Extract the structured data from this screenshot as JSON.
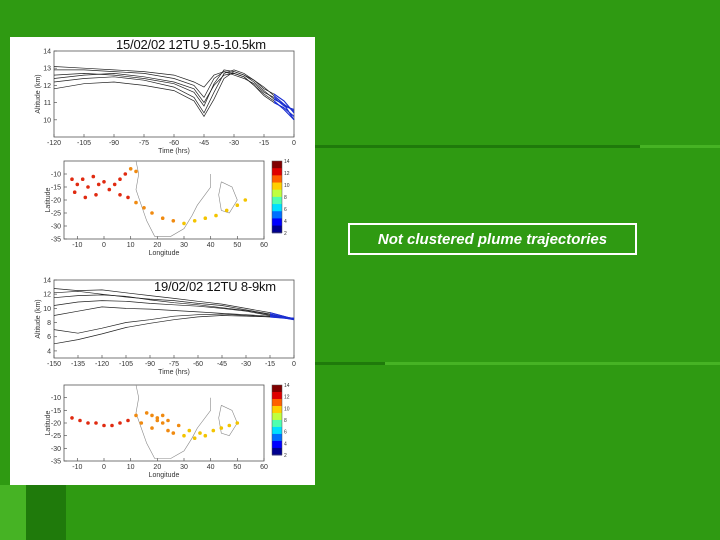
{
  "slide": {
    "colors": {
      "background": "#2f9a12",
      "band_dark": "#1f7a0b",
      "band_light": "#46b324"
    },
    "callout_text": "Not clustered plume trajectories"
  },
  "chart_data": [
    {
      "type": "line",
      "title": "15/02/02 12TU 9.5-10.5km",
      "xlabel": "Time (hrs)",
      "ylabel": "Altitude (km)",
      "xlim": [
        -120,
        0
      ],
      "ylim": [
        9,
        14
      ],
      "xticks": [
        -120,
        -105,
        -90,
        -75,
        -60,
        -45,
        -30,
        -15,
        0
      ],
      "yticks": [
        10,
        11,
        12,
        13,
        14
      ],
      "series": [
        {
          "x": [
            -120,
            -105,
            -90,
            -75,
            -60,
            -50,
            -45,
            -40,
            -35,
            -30,
            -25,
            -20,
            -15,
            -10,
            -5,
            0
          ],
          "values": [
            12.9,
            12.9,
            12.8,
            12.7,
            12.4,
            12.0,
            11.3,
            12.4,
            12.8,
            12.7,
            12.5,
            12.0,
            11.4,
            11.0,
            10.7,
            10.2
          ]
        },
        {
          "x": [
            -120,
            -105,
            -90,
            -75,
            -60,
            -50,
            -45,
            -40,
            -35,
            -30,
            -25,
            -20,
            -15,
            -10,
            -5,
            0
          ],
          "values": [
            12.6,
            12.7,
            12.6,
            12.4,
            12.1,
            11.6,
            10.8,
            12.1,
            12.9,
            12.8,
            12.6,
            12.2,
            11.7,
            11.2,
            10.9,
            10.0
          ]
        },
        {
          "x": [
            -120,
            -105,
            -90,
            -75,
            -60,
            -50,
            -45,
            -40,
            -35,
            -30,
            -25,
            -20,
            -15,
            -10,
            -5,
            0
          ],
          "values": [
            12.2,
            12.4,
            12.5,
            12.3,
            11.9,
            11.3,
            10.4,
            11.6,
            12.7,
            12.9,
            12.7,
            12.3,
            11.8,
            11.5,
            11.1,
            10.4
          ]
        },
        {
          "x": [
            -120,
            -105,
            -90,
            -75,
            -60,
            -50,
            -45,
            -40,
            -35,
            -30,
            -25,
            -20,
            -15,
            -10,
            -5,
            0
          ],
          "values": [
            13.1,
            13.0,
            12.9,
            12.8,
            12.6,
            12.2,
            11.9,
            12.6,
            12.8,
            12.6,
            12.4,
            12.1,
            11.6,
            11.3,
            10.8,
            10.6
          ]
        },
        {
          "x": [
            -120,
            -105,
            -90,
            -75,
            -60,
            -50,
            -45,
            -40,
            -35,
            -30,
            -25,
            -20,
            -15,
            -10,
            -5,
            0
          ],
          "values": [
            11.8,
            12.1,
            12.2,
            12.0,
            11.7,
            11.1,
            10.2,
            11.2,
            12.4,
            12.8,
            12.6,
            12.3,
            11.9,
            11.4,
            10.9,
            10.5
          ]
        },
        {
          "x": [
            -120,
            -105,
            -90,
            -75,
            -60,
            -50,
            -45,
            -40,
            -35,
            -30,
            -25,
            -20,
            -15,
            -10,
            -5,
            0
          ],
          "values": [
            12.4,
            12.6,
            12.7,
            12.5,
            12.2,
            11.8,
            11.0,
            12.0,
            12.6,
            12.7,
            12.5,
            12.0,
            11.5,
            11.1,
            10.6,
            10.0
          ]
        }
      ]
    },
    {
      "type": "scatter",
      "xlabel": "Longitude",
      "ylabel": "Latitude",
      "xlim": [
        -15,
        60
      ],
      "ylim": [
        -35,
        -5
      ],
      "xticks": [
        -10,
        0,
        10,
        20,
        30,
        40,
        50,
        60
      ],
      "yticks": [
        -10,
        -15,
        -20,
        -25,
        -30,
        -35
      ],
      "colorbar": {
        "ticks": [
          14,
          12,
          10,
          8,
          6,
          4,
          2
        ]
      },
      "points": [
        {
          "x": -12,
          "y": -12
        },
        {
          "x": -10,
          "y": -14
        },
        {
          "x": -8,
          "y": -12
        },
        {
          "x": -6,
          "y": -15
        },
        {
          "x": -4,
          "y": -11
        },
        {
          "x": -2,
          "y": -14
        },
        {
          "x": 0,
          "y": -13
        },
        {
          "x": 2,
          "y": -16
        },
        {
          "x": 4,
          "y": -14
        },
        {
          "x": 6,
          "y": -12
        },
        {
          "x": 8,
          "y": -10
        },
        {
          "x": 10,
          "y": -8
        },
        {
          "x": 12,
          "y": -9
        },
        {
          "x": 6,
          "y": -18
        },
        {
          "x": 9,
          "y": -19
        },
        {
          "x": 12,
          "y": -21
        },
        {
          "x": 15,
          "y": -23
        },
        {
          "x": 18,
          "y": -25
        },
        {
          "x": 22,
          "y": -27
        },
        {
          "x": 26,
          "y": -28
        },
        {
          "x": 30,
          "y": -29
        },
        {
          "x": 34,
          "y": -28
        },
        {
          "x": 38,
          "y": -27
        },
        {
          "x": 42,
          "y": -26
        },
        {
          "x": 46,
          "y": -24
        },
        {
          "x": 50,
          "y": -22
        },
        {
          "x": 53,
          "y": -20
        },
        {
          "x": -11,
          "y": -17
        },
        {
          "x": -7,
          "y": -19
        },
        {
          "x": -3,
          "y": -18
        }
      ]
    },
    {
      "type": "line",
      "title": "19/02/02 12TU 8-9km",
      "xlabel": "Time (hrs)",
      "ylabel": "Altitude (km)",
      "xlim": [
        -150,
        0
      ],
      "ylim": [
        3,
        14
      ],
      "xticks": [
        -150,
        -135,
        -120,
        -105,
        -90,
        -75,
        -60,
        -45,
        -30,
        -15,
        0
      ],
      "yticks": [
        4,
        6,
        8,
        10,
        12,
        14
      ],
      "series": [
        {
          "x": [
            -150,
            -135,
            -120,
            -105,
            -90,
            -75,
            -60,
            -45,
            -30,
            -15,
            -5,
            0
          ],
          "values": [
            12.8,
            12.5,
            12.6,
            12.2,
            11.8,
            11.4,
            11.0,
            10.6,
            10.0,
            9.4,
            8.8,
            8.5
          ]
        },
        {
          "x": [
            -150,
            -135,
            -120,
            -105,
            -90,
            -75,
            -60,
            -45,
            -30,
            -15,
            -5,
            0
          ],
          "values": [
            12.2,
            12.4,
            12.0,
            11.6,
            11.3,
            11.1,
            10.7,
            10.4,
            9.8,
            9.2,
            8.7,
            8.6
          ]
        },
        {
          "x": [
            -150,
            -135,
            -120,
            -105,
            -90,
            -75,
            -60,
            -45,
            -30,
            -15,
            -5,
            0
          ],
          "values": [
            11.5,
            11.8,
            11.9,
            11.7,
            11.2,
            10.8,
            10.5,
            10.1,
            9.7,
            9.1,
            8.6,
            8.4
          ]
        },
        {
          "x": [
            -150,
            -135,
            -120,
            -105,
            -90,
            -75,
            -60,
            -45,
            -30,
            -15,
            -5,
            0
          ],
          "values": [
            10.4,
            10.9,
            11.1,
            11.0,
            10.7,
            10.5,
            10.3,
            10.0,
            9.6,
            9.0,
            8.7,
            8.5
          ]
        },
        {
          "x": [
            -150,
            -135,
            -120,
            -105,
            -90,
            -75,
            -60,
            -45,
            -30,
            -15,
            -5,
            0
          ],
          "values": [
            9.0,
            9.6,
            10.2,
            10.0,
            9.9,
            9.7,
            9.5,
            9.3,
            9.1,
            8.9,
            8.7,
            8.6
          ]
        },
        {
          "x": [
            -150,
            -135,
            -120,
            -105,
            -90,
            -75,
            -60,
            -45,
            -30,
            -15,
            -5,
            0
          ],
          "values": [
            7.0,
            6.5,
            7.2,
            8.0,
            8.4,
            8.9,
            9.1,
            9.2,
            9.0,
            8.8,
            8.6,
            8.5
          ]
        },
        {
          "x": [
            -150,
            -135,
            -120,
            -105,
            -90,
            -75,
            -60,
            -45,
            -30,
            -15,
            -5,
            0
          ],
          "values": [
            5.0,
            5.6,
            6.4,
            7.3,
            7.9,
            8.4,
            8.8,
            9.0,
            8.9,
            8.8,
            8.7,
            8.5
          ]
        }
      ]
    },
    {
      "type": "scatter",
      "xlabel": "Longitude",
      "ylabel": "Latitude",
      "xlim": [
        -15,
        60
      ],
      "ylim": [
        -35,
        -5
      ],
      "xticks": [
        -10,
        0,
        10,
        20,
        30,
        40,
        50,
        60
      ],
      "yticks": [
        -10,
        -15,
        -20,
        -25,
        -30,
        -35
      ],
      "colorbar": {
        "ticks": [
          14,
          12,
          10,
          8,
          6,
          4,
          2
        ]
      },
      "points": [
        {
          "x": -12,
          "y": -18
        },
        {
          "x": -9,
          "y": -19
        },
        {
          "x": -6,
          "y": -20
        },
        {
          "x": -3,
          "y": -20
        },
        {
          "x": 0,
          "y": -21
        },
        {
          "x": 3,
          "y": -21
        },
        {
          "x": 6,
          "y": -20
        },
        {
          "x": 9,
          "y": -19
        },
        {
          "x": 12,
          "y": -17
        },
        {
          "x": 14,
          "y": -20
        },
        {
          "x": 16,
          "y": -16
        },
        {
          "x": 18,
          "y": -22
        },
        {
          "x": 20,
          "y": -18
        },
        {
          "x": 22,
          "y": -20
        },
        {
          "x": 24,
          "y": -23
        },
        {
          "x": 26,
          "y": -24
        },
        {
          "x": 28,
          "y": -21
        },
        {
          "x": 30,
          "y": -25
        },
        {
          "x": 32,
          "y": -23
        },
        {
          "x": 34,
          "y": -26
        },
        {
          "x": 36,
          "y": -24
        },
        {
          "x": 38,
          "y": -25
        },
        {
          "x": 41,
          "y": -23
        },
        {
          "x": 44,
          "y": -22
        },
        {
          "x": 47,
          "y": -21
        },
        {
          "x": 50,
          "y": -20
        },
        {
          "x": 18,
          "y": -17
        },
        {
          "x": 20,
          "y": -19
        },
        {
          "x": 22,
          "y": -17
        },
        {
          "x": 24,
          "y": -19
        }
      ]
    }
  ]
}
